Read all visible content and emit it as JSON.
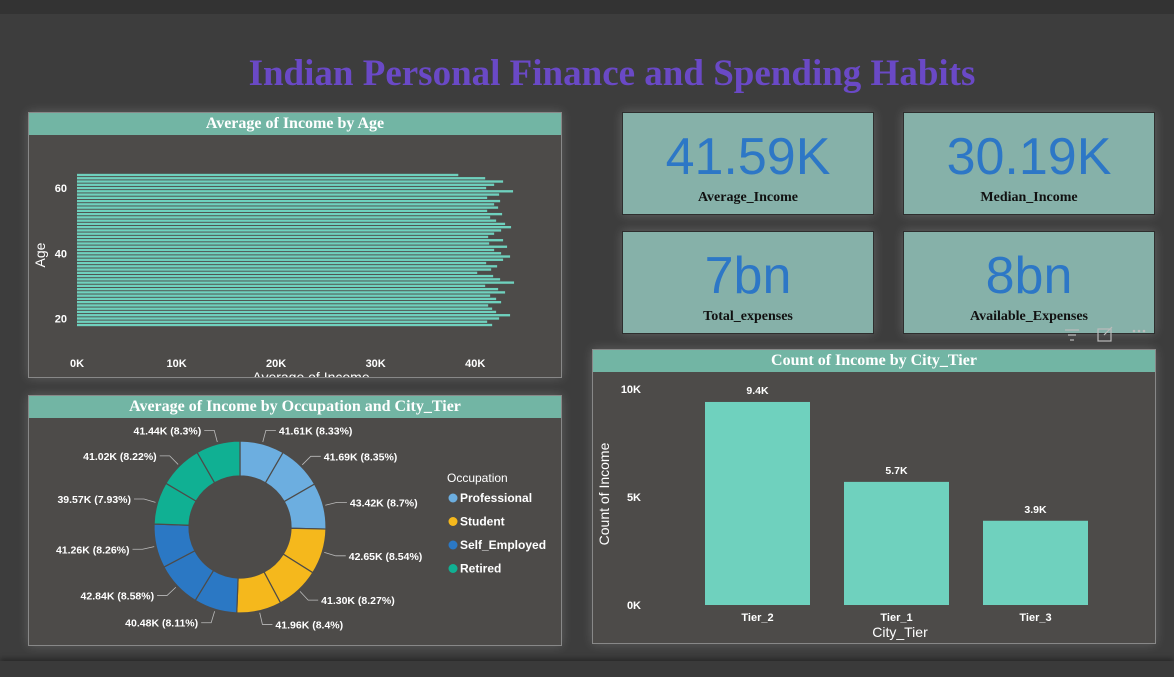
{
  "title": "Indian Personal Finance and Spending Habits",
  "colors": {
    "accent_header": "#72b5a4",
    "bar": "#6fd1be",
    "title": "#6a49c6",
    "kpi_value": "#2d77c6",
    "Professional": "#6caee0",
    "Student": "#f5b81c",
    "Self_Employed": "#2b78c4",
    "Retired": "#10b093"
  },
  "kpis": [
    {
      "value": "41.59K",
      "label": "Average_Income"
    },
    {
      "value": "30.19K",
      "label": "Median_Income"
    },
    {
      "value": "7bn",
      "label": "Total_expenses"
    },
    {
      "value": "8bn",
      "label": "Available_Expenses"
    }
  ],
  "panels": {
    "age": "Average of Income by Age",
    "occupation": "Average of Income by Occupation and City_Tier",
    "city": "Count of Income by City_Tier"
  },
  "icons": [
    "filter-icon",
    "focus-mode-icon",
    "more-options-icon"
  ],
  "chart_data": [
    {
      "type": "bar",
      "orientation": "horizontal",
      "title": "Average of Income by Age",
      "xlabel": "Average of Income",
      "ylabel": "Age",
      "x_ticks": [
        "0K",
        "10K",
        "20K",
        "30K",
        "40K"
      ],
      "y_ticks": [
        "20",
        "40",
        "60"
      ],
      "xlim": [
        0,
        45000
      ],
      "categories": [
        18,
        19,
        20,
        21,
        22,
        23,
        24,
        25,
        26,
        27,
        28,
        29,
        30,
        31,
        32,
        33,
        34,
        35,
        36,
        37,
        38,
        39,
        40,
        41,
        42,
        43,
        44,
        45,
        46,
        47,
        48,
        49,
        50,
        51,
        52,
        53,
        54,
        55,
        56,
        57,
        58,
        59,
        60,
        61,
        62,
        63,
        64
      ],
      "values": [
        41700,
        41200,
        42400,
        43500,
        42100,
        41700,
        41300,
        42600,
        42100,
        41500,
        43000,
        42300,
        41000,
        43900,
        42500,
        41800,
        40200,
        41600,
        42200,
        41100,
        42800,
        43500,
        42600,
        41900,
        43200,
        41400,
        42800,
        41300,
        41900,
        42600,
        43600,
        43000,
        42100,
        41500,
        42700,
        41200,
        42300,
        41900,
        42500,
        41200,
        42400,
        43800,
        41100,
        41900,
        42800,
        41000,
        38300
      ]
    },
    {
      "type": "pie",
      "subtype": "donut",
      "title": "Average of Income by Occupation and City_Tier",
      "legend_title": "Occupation",
      "legend": [
        "Professional",
        "Student",
        "Self_Employed",
        "Retired"
      ],
      "legend_position": "right",
      "slices": [
        {
          "occupation": "Professional",
          "value": 41.61,
          "label": "41.61K (8.33%)",
          "percent": 8.33
        },
        {
          "occupation": "Professional",
          "value": 41.69,
          "label": "41.69K (8.35%)",
          "percent": 8.35
        },
        {
          "occupation": "Professional",
          "value": 43.42,
          "label": "43.42K (8.7%)",
          "percent": 8.7
        },
        {
          "occupation": "Student",
          "value": 42.65,
          "label": "42.65K (8.54%)",
          "percent": 8.54
        },
        {
          "occupation": "Student",
          "value": 41.3,
          "label": "41.30K (8.27%)",
          "percent": 8.27
        },
        {
          "occupation": "Student",
          "value": 41.96,
          "label": "41.96K (8.4%)",
          "percent": 8.4
        },
        {
          "occupation": "Self_Employed",
          "value": 40.48,
          "label": "40.48K (8.11%)",
          "percent": 8.11
        },
        {
          "occupation": "Self_Employed",
          "value": 42.84,
          "label": "42.84K (8.58%)",
          "percent": 8.58
        },
        {
          "occupation": "Self_Employed",
          "value": 41.26,
          "label": "41.26K (8.26%)",
          "percent": 8.26
        },
        {
          "occupation": "Retired",
          "value": 39.57,
          "label": "39.57K (7.93%)",
          "percent": 7.93
        },
        {
          "occupation": "Retired",
          "value": 41.02,
          "label": "41.02K (8.22%)",
          "percent": 8.22
        },
        {
          "occupation": "Retired",
          "value": 41.44,
          "label": "41.44K (8.3%)",
          "percent": 8.3
        }
      ]
    },
    {
      "type": "bar",
      "title": "Count of Income by City_Tier",
      "xlabel": "City_Tier",
      "ylabel": "Count of Income",
      "y_ticks": [
        "0K",
        "5K",
        "10K"
      ],
      "ylim": [
        0,
        10000
      ],
      "categories": [
        "Tier_2",
        "Tier_1",
        "Tier_3"
      ],
      "values": [
        9400,
        5700,
        3900
      ],
      "data_labels": [
        "9.4K",
        "5.7K",
        "3.9K"
      ]
    }
  ]
}
